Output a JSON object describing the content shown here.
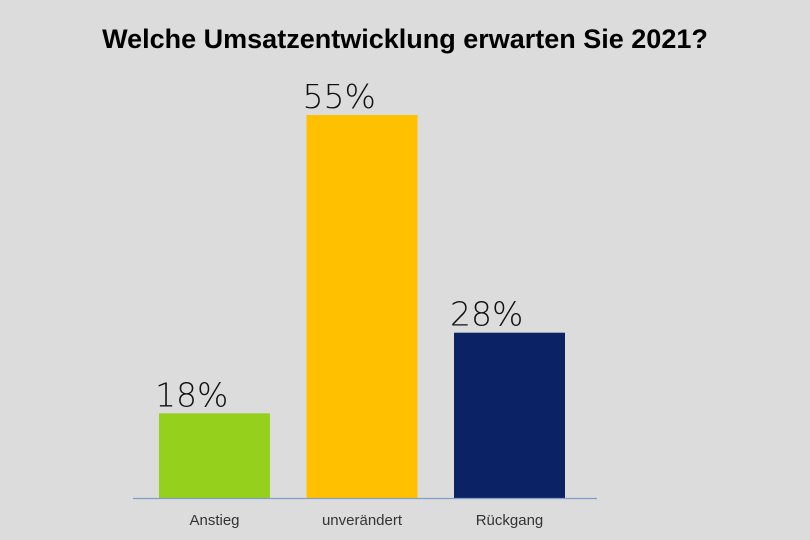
{
  "chart_data": {
    "type": "bar",
    "title": "Welche Umsatzentwicklung erwarten Sie 2021?",
    "categories": [
      "Anstieg",
      "unverändert",
      "Rückgang"
    ],
    "values": [
      18,
      55,
      28
    ],
    "value_labels": [
      "18%",
      "55%",
      "28%"
    ],
    "colors": [
      "#95d11c",
      "#ffc000",
      "#0b2265"
    ],
    "axis_color": "#7f9fc8",
    "xlabel": "",
    "ylabel": "",
    "ylim": [
      7.5,
      55
    ],
    "grid": false
  }
}
